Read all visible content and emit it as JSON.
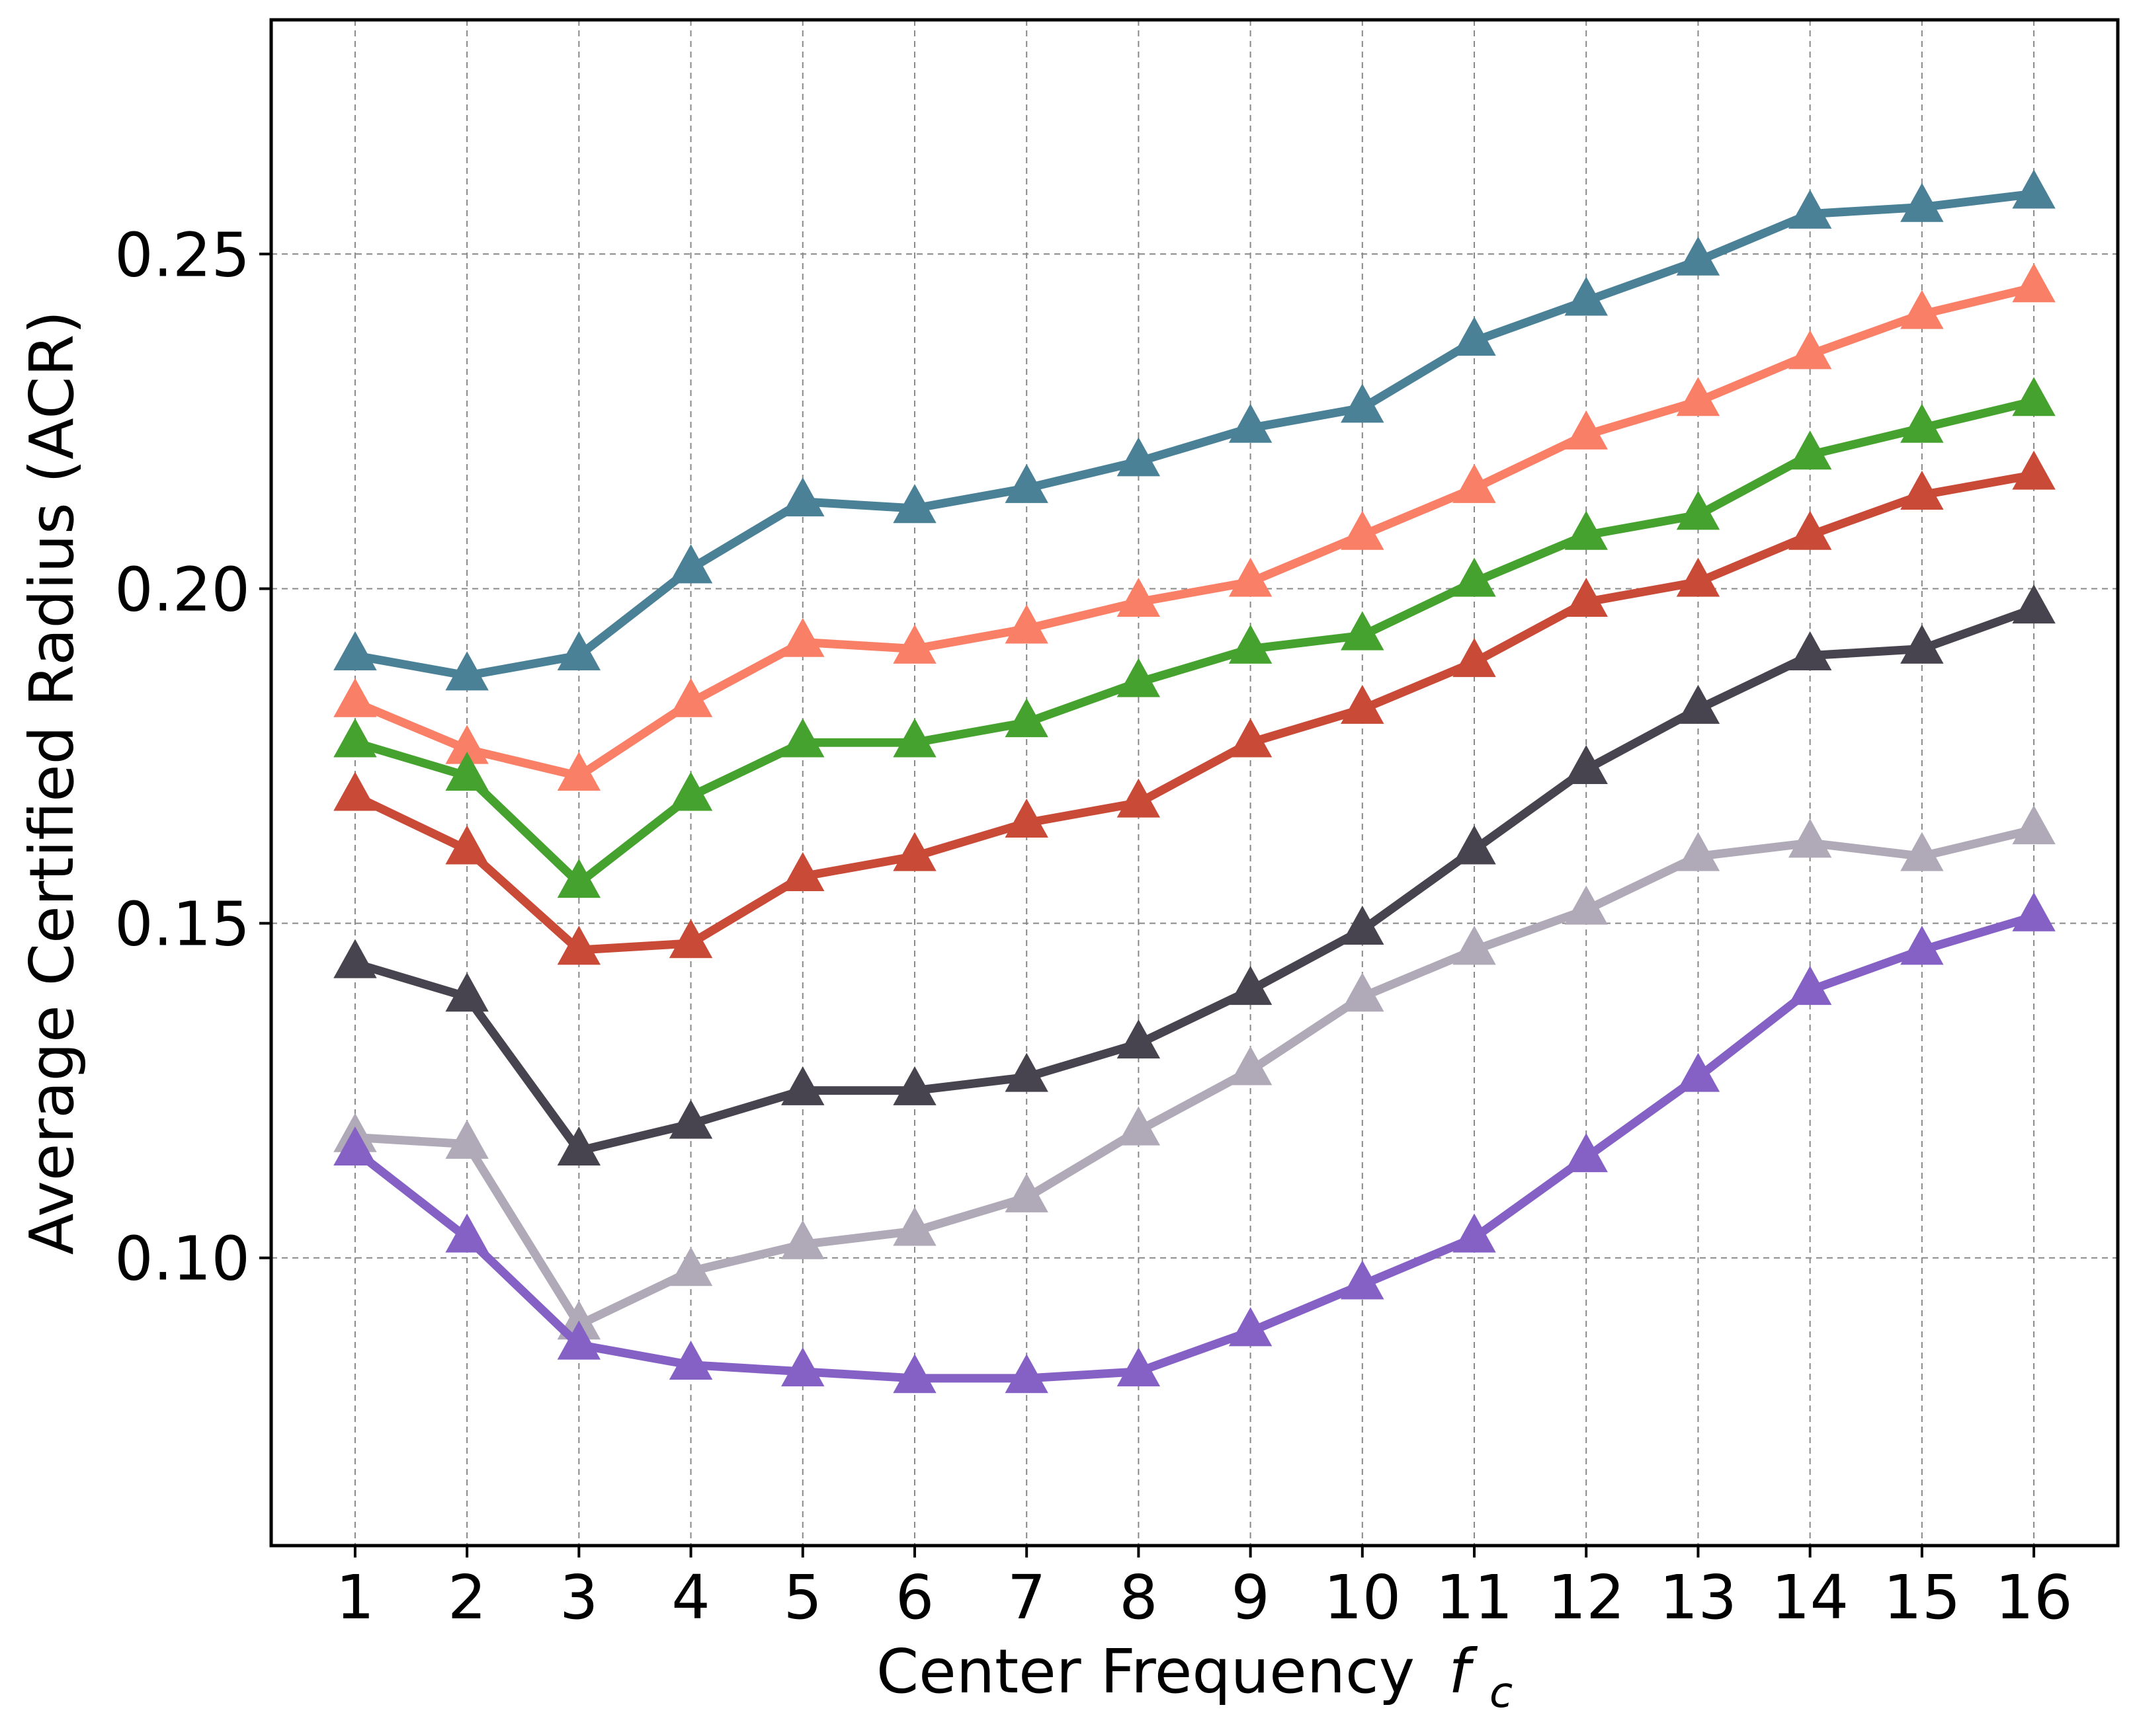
{
  "chart_data": {
    "type": "line",
    "title": "",
    "xlabel": "Center Frequency",
    "xlabel_symbol": "f",
    "xlabel_subscript": "c",
    "ylabel": "Average Certified Radius (ACR)",
    "x": [
      1,
      2,
      3,
      4,
      5,
      6,
      7,
      8,
      9,
      10,
      11,
      12,
      13,
      14,
      15,
      16
    ],
    "x_tick_labels": [
      "1",
      "2",
      "3",
      "4",
      "5",
      "6",
      "7",
      "8",
      "9",
      "10",
      "11",
      "12",
      "13",
      "14",
      "15",
      "16"
    ],
    "y_ticks": [
      0.1,
      0.15,
      0.2,
      0.25
    ],
    "y_tick_labels": [
      "0.10",
      "0.15",
      "0.20",
      "0.25"
    ],
    "xlim": [
      0.25,
      16.75
    ],
    "ylim": [
      0.057,
      0.285
    ],
    "grid": true,
    "legend": "none",
    "marker": "triangle-up",
    "series": [
      {
        "color": "#4a8196",
        "values": [
          0.19,
          0.187,
          0.19,
          0.203,
          0.213,
          0.212,
          0.215,
          0.219,
          0.224,
          0.227,
          0.237,
          0.243,
          0.249,
          0.256,
          0.257,
          0.259
        ]
      },
      {
        "color": "#fa7f67",
        "values": [
          0.183,
          0.176,
          0.172,
          0.183,
          0.192,
          0.191,
          0.194,
          0.198,
          0.201,
          0.208,
          0.215,
          0.223,
          0.228,
          0.235,
          0.241,
          0.245
        ]
      },
      {
        "color": "#46a22e",
        "values": [
          0.177,
          0.172,
          0.156,
          0.169,
          0.177,
          0.177,
          0.18,
          0.186,
          0.191,
          0.193,
          0.201,
          0.208,
          0.211,
          0.22,
          0.224,
          0.228
        ]
      },
      {
        "color": "#c84a37",
        "values": [
          0.169,
          0.161,
          0.146,
          0.147,
          0.157,
          0.16,
          0.165,
          0.168,
          0.177,
          0.182,
          0.189,
          0.198,
          0.201,
          0.208,
          0.214,
          0.217
        ]
      },
      {
        "color": "#48444f",
        "values": [
          0.144,
          0.139,
          0.116,
          0.12,
          0.125,
          0.125,
          0.127,
          0.132,
          0.14,
          0.149,
          0.161,
          0.173,
          0.182,
          0.19,
          0.191,
          0.197
        ]
      },
      {
        "color": "#b0a9b7",
        "values": [
          0.118,
          0.117,
          0.09,
          0.098,
          0.102,
          0.104,
          0.109,
          0.119,
          0.128,
          0.139,
          0.146,
          0.152,
          0.16,
          0.162,
          0.16,
          0.164
        ]
      },
      {
        "color": "#8561c5",
        "values": [
          0.116,
          0.103,
          0.087,
          0.084,
          0.083,
          0.082,
          0.082,
          0.083,
          0.089,
          0.096,
          0.103,
          0.115,
          0.127,
          0.14,
          0.146,
          0.151
        ]
      }
    ]
  }
}
